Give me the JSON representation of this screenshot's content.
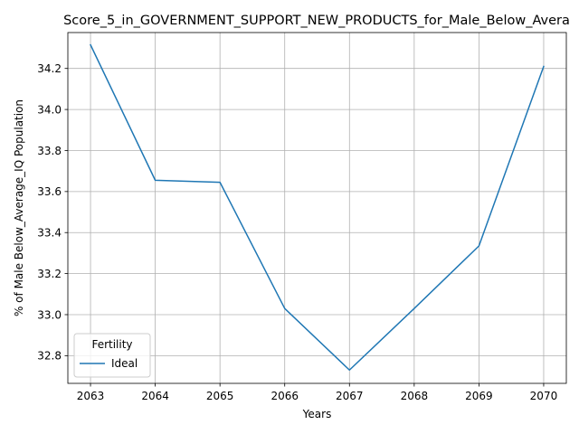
{
  "chart_data": {
    "type": "line",
    "title": "Score_5_in_GOVERNMENT_SUPPORT_NEW_PRODUCTS_for_Male_Below_Avera",
    "xlabel": "Years",
    "ylabel": "% of Male Below_Average_IQ Population",
    "x": [
      2063,
      2064,
      2065,
      2066,
      2067,
      2068,
      2069,
      2070
    ],
    "xlim": [
      2062.65,
      2070.35
    ],
    "ylim": [
      32.665,
      34.375
    ],
    "xticks": [
      "2063",
      "2064",
      "2065",
      "2066",
      "2067",
      "2068",
      "2069",
      "2070"
    ],
    "yticks": [
      "32.8",
      "33.0",
      "33.2",
      "33.4",
      "33.6",
      "33.8",
      "34.0",
      "34.2"
    ],
    "grid": true,
    "legend": {
      "title": "Fertility",
      "placement": "lower-left"
    },
    "series": [
      {
        "name": "Ideal",
        "color": "#1f77b4",
        "values": [
          34.315,
          33.655,
          33.645,
          33.03,
          32.73,
          33.03,
          33.335,
          34.21
        ]
      }
    ]
  }
}
